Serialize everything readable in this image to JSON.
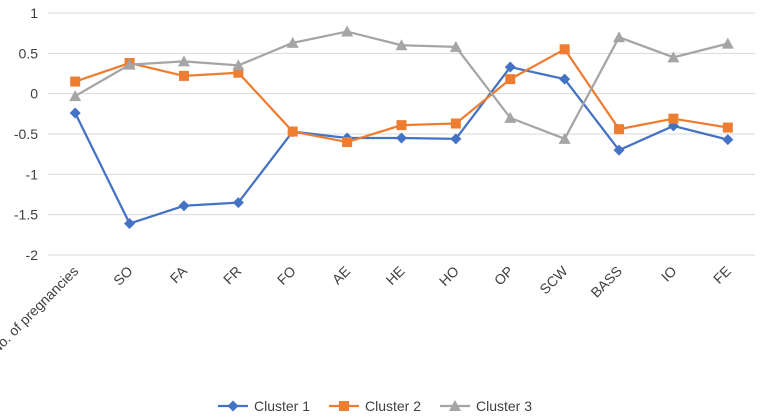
{
  "chart_data": {
    "type": "line",
    "title": "",
    "xlabel": "",
    "ylabel": "",
    "ylim": [
      -2,
      1
    ],
    "yticks": [
      1,
      0.5,
      0,
      -0.5,
      -1,
      -1.5,
      -2
    ],
    "ytick_labels": [
      "1",
      "0.5",
      "0",
      "-0.5",
      "-1",
      "-1.5",
      "-2"
    ],
    "grid": true,
    "legend_position": "bottom",
    "categories": [
      "No. of pregnancies",
      "SO",
      "FA",
      "FR",
      "FO",
      "AE",
      "HE",
      "HO",
      "OP",
      "SCW",
      "BASS",
      "IO",
      "FE"
    ],
    "series": [
      {
        "name": "Cluster 1",
        "color": "#4472c4",
        "marker": "diamond",
        "values": [
          -0.24,
          -1.61,
          -1.39,
          -1.35,
          -0.47,
          -0.55,
          -0.55,
          -0.56,
          0.33,
          0.18,
          -0.7,
          -0.4,
          -0.57
        ]
      },
      {
        "name": "Cluster 2",
        "color": "#ed7d31",
        "marker": "square",
        "values": [
          0.15,
          0.38,
          0.22,
          0.26,
          -0.47,
          -0.6,
          -0.39,
          -0.37,
          0.18,
          0.55,
          -0.44,
          -0.31,
          -0.42
        ]
      },
      {
        "name": "Cluster 3",
        "color": "#a5a5a5",
        "marker": "triangle",
        "values": [
          -0.03,
          0.36,
          0.4,
          0.35,
          0.63,
          0.77,
          0.6,
          0.58,
          -0.3,
          -0.56,
          0.7,
          0.45,
          0.62
        ]
      }
    ]
  }
}
